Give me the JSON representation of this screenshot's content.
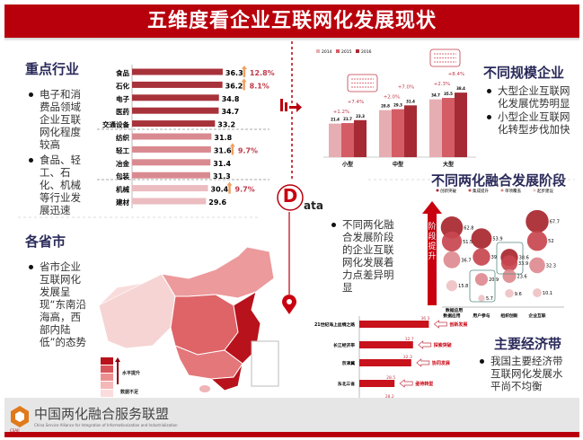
{
  "title": "五维度看企业互联网化发展现状",
  "industry": {
    "heading": "重点行业",
    "bullets": [
      "电子和消费品领域企业互联网化程度较高",
      "食品、轻工、石化、机械等行业发展迅速"
    ]
  },
  "province": {
    "heading": "各省市",
    "bullets": [
      "省市企业互联网化发展呈现“东南沿海高，西部内陆低”的态势"
    ],
    "legend_high": "水平提升",
    "legend_low": "数据不足",
    "swatches": [
      "#b8121c",
      "#d9545a",
      "#ec8e90",
      "#f4b8b9",
      "#fadcdc"
    ]
  },
  "scale": {
    "heading": "不同规模企业",
    "bullets": [
      "大型企业互联网化发展优势明显",
      "小型企业互联网化转型步伐加快"
    ]
  },
  "stage": {
    "heading": "不同两化融合发展阶段",
    "data_word": "ata",
    "data_letter": "D",
    "bullets": [
      "不同两化融合发展阶段的企业互联网化发展着力点差异明显"
    ],
    "arrow_label": "阶段提升"
  },
  "belt": {
    "heading": "主要经济带",
    "bullets": [
      "我国主要经济带互联网化发展水平尚不均衡"
    ]
  },
  "footer": {
    "org": "中国两化融合服务联盟",
    "org_en": "China Service Alliance for Integration of Informationization and Industrialization",
    "logo_text": "CSAII"
  },
  "colors": {
    "brand": "#b8000c",
    "dark": "#a8323a",
    "mid": "#d98a90",
    "light": "#ebbcc0"
  },
  "chart_data": [
    {
      "type": "bar",
      "orientation": "horizontal",
      "title": "重点行业",
      "categories": [
        "食品",
        "石化",
        "电子",
        "医药",
        "交通设备",
        "纺织",
        "轻工",
        "冶金",
        "包装",
        "机械",
        "建材"
      ],
      "values": [
        36.3,
        36.2,
        34.8,
        34.7,
        33.2,
        31.8,
        31.6,
        31.4,
        31.3,
        30.4,
        29.6
      ],
      "tiers": [
        0,
        0,
        0,
        0,
        0,
        1,
        1,
        1,
        1,
        2,
        2
      ],
      "growth": {
        "食品": "12.8%",
        "石化": "8.1%",
        "轻工": "9.7%",
        "机械": "9.7%"
      },
      "xlim": [
        0,
        40
      ]
    },
    {
      "type": "bar",
      "title": "不同规模企业",
      "categories": [
        "小型",
        "中型",
        "大型"
      ],
      "series": [
        {
          "name": "2014",
          "values": [
            21.4,
            28.8,
            34.7
          ]
        },
        {
          "name": "2015",
          "values": [
            21.7,
            29.3,
            35.5
          ]
        },
        {
          "name": "2016",
          "values": [
            23.3,
            31.4,
            38.4
          ]
        }
      ],
      "growth_labels": [
        [
          "+1.2%",
          "+7.4%"
        ],
        [
          "+2.0%",
          "+7.0%"
        ],
        [
          "+2.3%",
          "+8.4%"
        ]
      ],
      "ylim": [
        3,
        42
      ]
    },
    {
      "type": "scatter",
      "subtype": "bubble",
      "title": "不同两化融合发展阶段",
      "categories": [
        "数据应用",
        "用户参与",
        "组织创新",
        "企业互联"
      ],
      "series": [
        {
          "name": "创新突破",
          "values": [
            62.8,
            53.9,
            38.6,
            67.7
          ]
        },
        {
          "name": "集成提升",
          "values": [
            51.5,
            39.0,
            33.9,
            52.0
          ]
        },
        {
          "name": "单项覆盖",
          "values": [
            36.7,
            20.9,
            23.6,
            32.3
          ]
        },
        {
          "name": "起步建设",
          "values": [
            15.8,
            5.7,
            9.6,
            10.1
          ]
        }
      ],
      "ylim": [
        0,
        70
      ]
    },
    {
      "type": "bar",
      "orientation": "horizontal",
      "title": "主要经济带",
      "corner_label": "数据应用",
      "categories": [
        "21世纪海上丝绸之路",
        "长江经济带",
        "京津冀",
        "东北三省",
        "丝绸之路经济带"
      ],
      "values": [
        36.3,
        32.7,
        32.3,
        28.5,
        28.2
      ],
      "tags": [
        "创新发展",
        "探索突破",
        "协同发展",
        "亟待转型",
        "蓄发潜力"
      ],
      "xlim": [
        20.5,
        37
      ]
    }
  ]
}
